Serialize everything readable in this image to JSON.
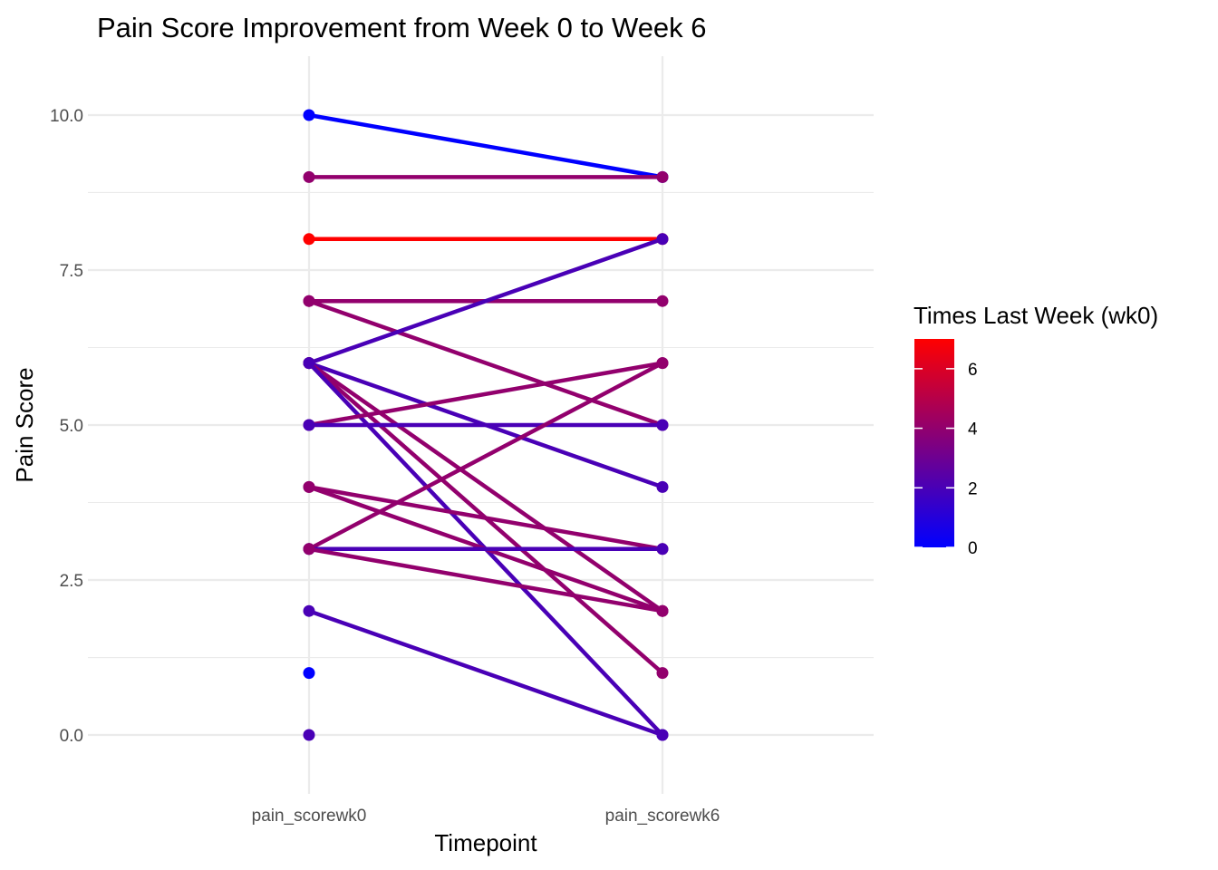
{
  "chart_data": {
    "type": "line",
    "title": "Pain Score Improvement from Week 0 to Week 6",
    "xlabel": "Timepoint",
    "ylabel": "Pain Score",
    "categories": [
      "pain_scorewk0",
      "pain_scorewk6"
    ],
    "ylim": [
      -0.95,
      10.95
    ],
    "yticks": [
      "0.0",
      "2.5",
      "5.0",
      "7.5",
      "10.0"
    ],
    "grid": true,
    "legend": {
      "title": "Times Last Week (wk0)",
      "placement": "right",
      "type": "colorbar",
      "range": [
        0,
        7
      ],
      "ticks": [
        "0",
        "2",
        "4",
        "6"
      ],
      "low_color": "#0000ff",
      "high_color": "#ff0000"
    },
    "segments": [
      {
        "wk0": 10,
        "wk6": 9,
        "times": 0
      },
      {
        "wk0": 9,
        "wk6": 9,
        "times": 4
      },
      {
        "wk0": 8,
        "wk6": 8,
        "times": 7
      },
      {
        "wk0": 7,
        "wk6": 7,
        "times": 4
      },
      {
        "wk0": 7,
        "wk6": 5,
        "times": 4
      },
      {
        "wk0": 6,
        "wk6": 8,
        "times": 2
      },
      {
        "wk0": 6,
        "wk6": 4,
        "times": 2
      },
      {
        "wk0": 6,
        "wk6": 2,
        "times": 4
      },
      {
        "wk0": 6,
        "wk6": 1,
        "times": 4
      },
      {
        "wk0": 6,
        "wk6": 0,
        "times": 2
      },
      {
        "wk0": 5,
        "wk6": 6,
        "times": 4
      },
      {
        "wk0": 5,
        "wk6": 5,
        "times": 2
      },
      {
        "wk0": 4,
        "wk6": 3,
        "times": 4
      },
      {
        "wk0": 4,
        "wk6": 2,
        "times": 4
      },
      {
        "wk0": 3,
        "wk6": 6,
        "times": 4
      },
      {
        "wk0": 3,
        "wk6": 3,
        "times": 2
      },
      {
        "wk0": 3,
        "wk6": 2,
        "times": 4
      },
      {
        "wk0": 2,
        "wk6": 0,
        "times": 2
      }
    ],
    "isolated_points": [
      {
        "wk0": 1,
        "times": 0
      },
      {
        "wk0": 0,
        "times": 2
      }
    ]
  }
}
